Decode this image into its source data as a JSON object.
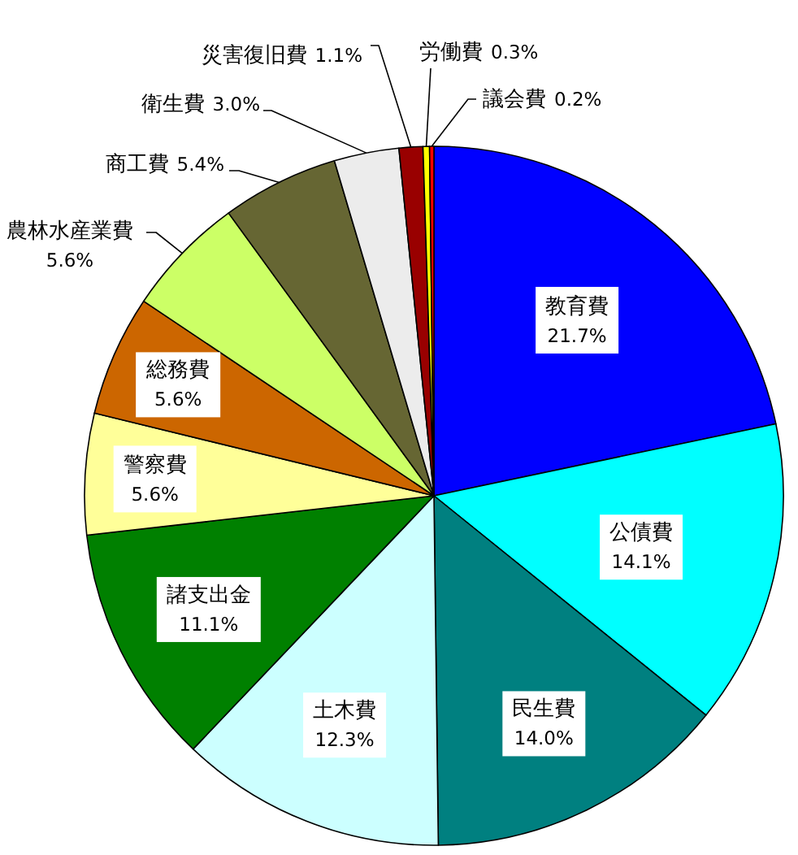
{
  "chart_data": {
    "type": "pie",
    "categories": [
      "教育費",
      "公債費",
      "民生費",
      "土木費",
      "諸支出金",
      "警察費",
      "総務費",
      "農林水産業費",
      "商工費",
      "衛生費",
      "災害復旧費",
      "労働費",
      "議会費"
    ],
    "values": [
      21.7,
      14.1,
      14.0,
      12.3,
      11.1,
      5.6,
      5.6,
      5.6,
      5.4,
      3.0,
      1.1,
      0.3,
      0.2
    ],
    "value_labels": [
      "21.7%",
      "14.1%",
      "14.0%",
      "12.3%",
      "11.1%",
      "5.6%",
      "5.6%",
      "5.6%",
      "5.4%",
      "3.0%",
      "1.1%",
      "0.3%",
      "0.2%"
    ],
    "colors": [
      "#0000ff",
      "#00ffff",
      "#008080",
      "#ccffff",
      "#008000",
      "#ffff99",
      "#cc6600",
      "#ccff66",
      "#666633",
      "#ececec",
      "#990000",
      "#ffff00",
      "#ff0000"
    ]
  }
}
